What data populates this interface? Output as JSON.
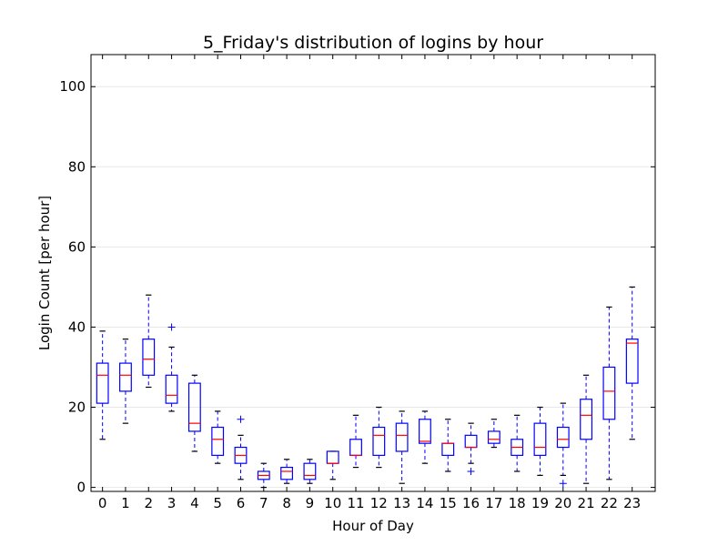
{
  "chart_data": {
    "type": "boxplot",
    "title": "5_Friday's distribution of logins by hour",
    "xlabel": "Hour of Day",
    "ylabel": "Login Count [per hour]",
    "ylim": [
      -1,
      108
    ],
    "yticks": [
      0,
      20,
      40,
      60,
      80,
      100
    ],
    "grid": "horizontal",
    "colors": {
      "box": "#0000ff",
      "median": "#ff0000",
      "whisker": "#0000ff",
      "flier": "#0000ff",
      "grid": "#e8e8e8"
    },
    "categories": [
      "0",
      "1",
      "2",
      "3",
      "4",
      "5",
      "6",
      "7",
      "8",
      "9",
      "10",
      "11",
      "12",
      "13",
      "14",
      "15",
      "16",
      "17",
      "18",
      "19",
      "20",
      "21",
      "22",
      "23"
    ],
    "boxes": [
      {
        "x": "0",
        "whislo": 12,
        "q1": 21,
        "med": 28,
        "q3": 31,
        "whishi": 39,
        "fliers": []
      },
      {
        "x": "1",
        "whislo": 16,
        "q1": 24,
        "med": 28,
        "q3": 31,
        "whishi": 37,
        "fliers": []
      },
      {
        "x": "2",
        "whislo": 25,
        "q1": 28,
        "med": 32,
        "q3": 37,
        "whishi": 48,
        "fliers": []
      },
      {
        "x": "3",
        "whislo": 19,
        "q1": 21,
        "med": 23,
        "q3": 28,
        "whishi": 35,
        "fliers": [
          40
        ]
      },
      {
        "x": "4",
        "whislo": 9,
        "q1": 14,
        "med": 16,
        "q3": 26,
        "whishi": 28,
        "fliers": []
      },
      {
        "x": "5",
        "whislo": 6,
        "q1": 8,
        "med": 12,
        "q3": 15,
        "whishi": 19,
        "fliers": []
      },
      {
        "x": "6",
        "whislo": 2,
        "q1": 6,
        "med": 8,
        "q3": 10,
        "whishi": 13,
        "fliers": [
          17
        ]
      },
      {
        "x": "7",
        "whislo": 0,
        "q1": 2,
        "med": 3,
        "q3": 4,
        "whishi": 6,
        "fliers": []
      },
      {
        "x": "8",
        "whislo": 1,
        "q1": 2,
        "med": 4,
        "q3": 5,
        "whishi": 7,
        "fliers": []
      },
      {
        "x": "9",
        "whislo": 1,
        "q1": 2,
        "med": 3,
        "q3": 6,
        "whishi": 7,
        "fliers": []
      },
      {
        "x": "10",
        "whislo": 2,
        "q1": 6,
        "med": 6,
        "q3": 9,
        "whishi": 9,
        "fliers": []
      },
      {
        "x": "11",
        "whislo": 5,
        "q1": 8,
        "med": 8,
        "q3": 12,
        "whishi": 18,
        "fliers": []
      },
      {
        "x": "12",
        "whislo": 5,
        "q1": 8,
        "med": 13,
        "q3": 15,
        "whishi": 20,
        "fliers": []
      },
      {
        "x": "13",
        "whislo": 1,
        "q1": 9,
        "med": 13,
        "q3": 16,
        "whishi": 19,
        "fliers": []
      },
      {
        "x": "14",
        "whislo": 6,
        "q1": 11,
        "med": 11.5,
        "q3": 17,
        "whishi": 19,
        "fliers": []
      },
      {
        "x": "15",
        "whislo": 4,
        "q1": 8,
        "med": 11,
        "q3": 11,
        "whishi": 17,
        "fliers": []
      },
      {
        "x": "16",
        "whislo": 6,
        "q1": 10,
        "med": 10,
        "q3": 13,
        "whishi": 16,
        "fliers": [
          4
        ]
      },
      {
        "x": "17",
        "whislo": 10,
        "q1": 11,
        "med": 12,
        "q3": 14,
        "whishi": 17,
        "fliers": []
      },
      {
        "x": "18",
        "whislo": 4,
        "q1": 8,
        "med": 10,
        "q3": 12,
        "whishi": 18,
        "fliers": []
      },
      {
        "x": "19",
        "whislo": 3,
        "q1": 8,
        "med": 10,
        "q3": 16,
        "whishi": 20,
        "fliers": []
      },
      {
        "x": "20",
        "whislo": 3,
        "q1": 10,
        "med": 12,
        "q3": 15,
        "whishi": 21,
        "fliers": [
          1
        ]
      },
      {
        "x": "21",
        "whislo": 1,
        "q1": 12,
        "med": 18,
        "q3": 22,
        "whishi": 28,
        "fliers": []
      },
      {
        "x": "22",
        "whislo": 2,
        "q1": 17,
        "med": 24,
        "q3": 30,
        "whishi": 45,
        "fliers": []
      },
      {
        "x": "23",
        "whislo": 12,
        "q1": 26,
        "med": 36,
        "q3": 37,
        "whishi": 50,
        "fliers": []
      }
    ]
  }
}
